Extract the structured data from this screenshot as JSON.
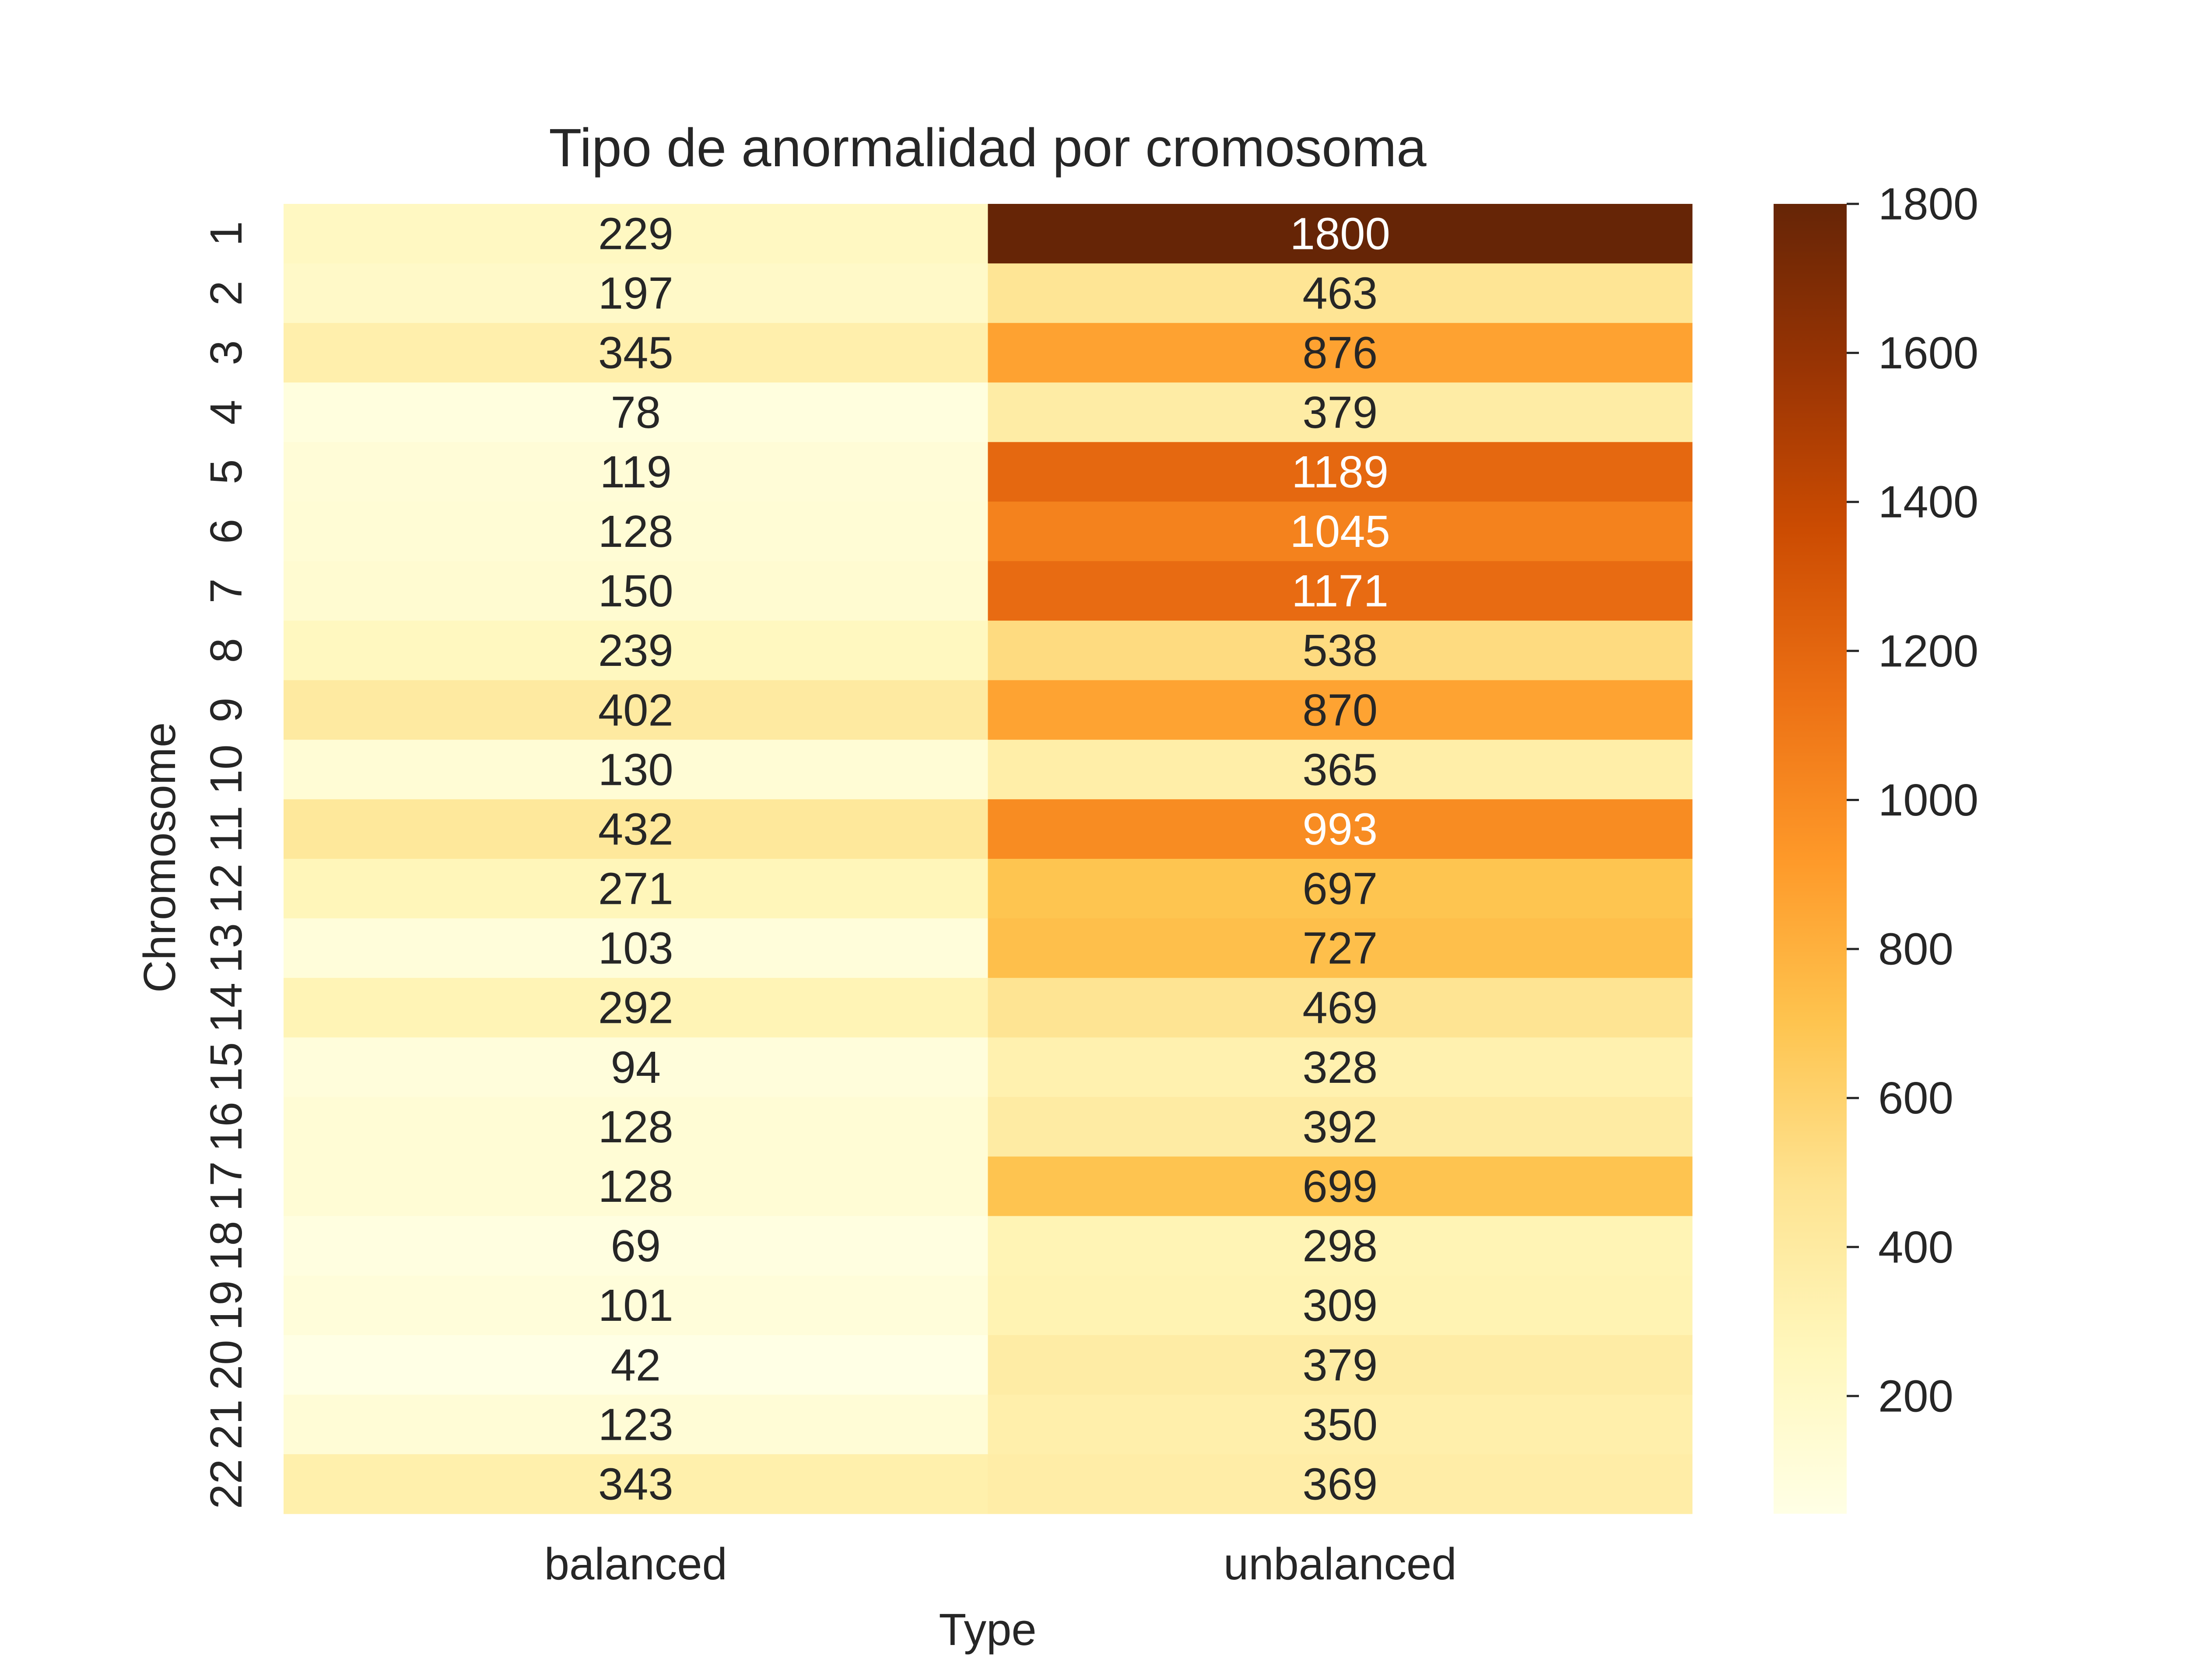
{
  "chart_data": {
    "type": "heatmap",
    "title": "Tipo de anormalidad por cromosoma",
    "xlabel": "Type",
    "ylabel": "Chromosome",
    "columns": [
      "balanced",
      "unbalanced"
    ],
    "rows": [
      "1",
      "2",
      "3",
      "4",
      "5",
      "6",
      "7",
      "8",
      "9",
      "10",
      "11",
      "12",
      "13",
      "14",
      "15",
      "16",
      "17",
      "18",
      "19",
      "20",
      "21",
      "22"
    ],
    "values": [
      [
        229,
        1800
      ],
      [
        197,
        463
      ],
      [
        345,
        876
      ],
      [
        78,
        379
      ],
      [
        119,
        1189
      ],
      [
        128,
        1045
      ],
      [
        150,
        1171
      ],
      [
        239,
        538
      ],
      [
        402,
        870
      ],
      [
        130,
        365
      ],
      [
        432,
        993
      ],
      [
        271,
        697
      ],
      [
        103,
        727
      ],
      [
        292,
        469
      ],
      [
        94,
        328
      ],
      [
        128,
        392
      ],
      [
        128,
        699
      ],
      [
        69,
        298
      ],
      [
        101,
        309
      ],
      [
        42,
        379
      ],
      [
        123,
        350
      ],
      [
        343,
        369
      ]
    ],
    "colorbar": {
      "min": 42,
      "max": 1800,
      "ticks": [
        200,
        400,
        600,
        800,
        1000,
        1200,
        1400,
        1600,
        1800
      ]
    },
    "colormap": [
      "#ffffe5",
      "#fff7bc",
      "#fee391",
      "#fec44f",
      "#fe9929",
      "#ec7014",
      "#cc4c02",
      "#993404",
      "#662506"
    ],
    "grid": false
  }
}
